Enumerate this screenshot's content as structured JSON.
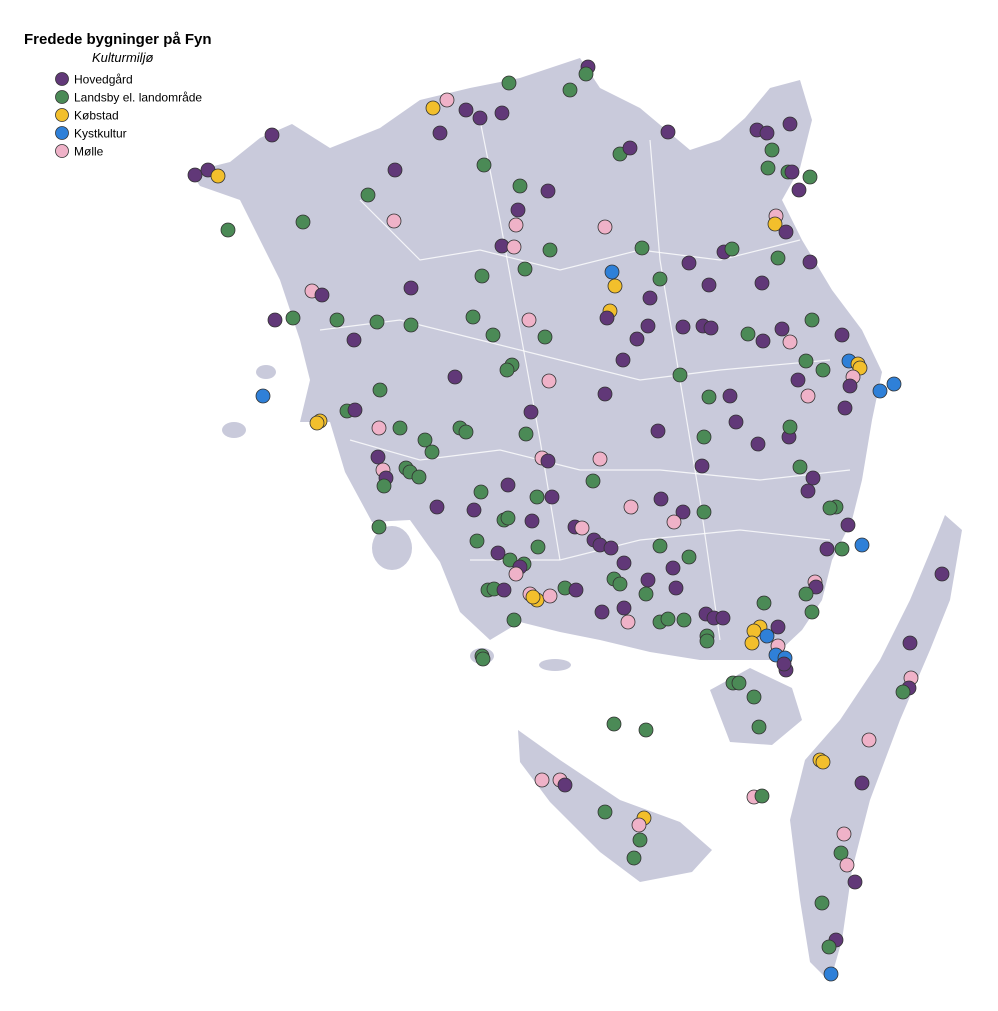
{
  "map": {
    "title": "Fredede bygninger på Fyn",
    "subtitle": "Kulturmiljø",
    "legend": [
      {
        "name": "Hovedgård",
        "color": "#613878"
      },
      {
        "name": "Landsby el. landområde",
        "color": "#4b8a56"
      },
      {
        "name": "Købstad",
        "color": "#f2bf2c"
      },
      {
        "name": "Kystkultur",
        "color": "#2f80d8"
      },
      {
        "name": "Mølle",
        "color": "#efb2c8"
      }
    ]
  }
}
